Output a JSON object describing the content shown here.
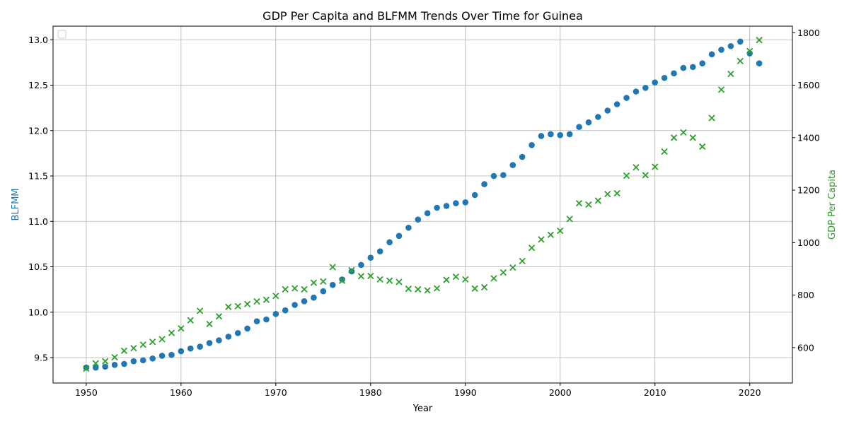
{
  "chart_data": {
    "type": "scatter",
    "title": "GDP Per Capita and BLFMM Trends Over Time for Guinea",
    "xlabel": "Year",
    "ylabel_left": "BLFMM",
    "ylabel_right": "GDP Per Capita",
    "xlim": [
      1946.5,
      2024.5
    ],
    "ylim_left": [
      9.22,
      13.15
    ],
    "ylim_right": [
      465,
      1825
    ],
    "x_ticks": [
      1950,
      1960,
      1970,
      1980,
      1990,
      2000,
      2010,
      2020
    ],
    "y_left_ticks": [
      9.5,
      10.0,
      10.5,
      11.0,
      11.5,
      12.0,
      12.5,
      13.0
    ],
    "y_right_ticks": [
      600,
      800,
      1000,
      1200,
      1400,
      1600,
      1800
    ],
    "grid": true,
    "legend": "top-left (empty)",
    "colors": {
      "blfmm": "#1f77b4",
      "gdp": "#2ca02c",
      "grid": "#b0b0b0"
    },
    "x": [
      1950,
      1951,
      1952,
      1953,
      1954,
      1955,
      1956,
      1957,
      1958,
      1959,
      1960,
      1961,
      1962,
      1963,
      1964,
      1965,
      1966,
      1967,
      1968,
      1969,
      1970,
      1971,
      1972,
      1973,
      1974,
      1975,
      1976,
      1977,
      1978,
      1979,
      1980,
      1981,
      1982,
      1983,
      1984,
      1985,
      1986,
      1987,
      1988,
      1989,
      1990,
      1991,
      1992,
      1993,
      1994,
      1995,
      1996,
      1997,
      1998,
      1999,
      2000,
      2001,
      2002,
      2003,
      2004,
      2005,
      2006,
      2007,
      2008,
      2009,
      2010,
      2011,
      2012,
      2013,
      2014,
      2015,
      2016,
      2017,
      2018,
      2019,
      2020,
      2021
    ],
    "series": [
      {
        "name": "BLFMM",
        "axis": "left",
        "marker": "circle",
        "values": [
          9.39,
          9.39,
          9.4,
          9.42,
          9.43,
          9.46,
          9.47,
          9.49,
          9.52,
          9.53,
          9.57,
          9.6,
          9.62,
          9.66,
          9.69,
          9.73,
          9.77,
          9.82,
          9.9,
          9.92,
          9.98,
          10.02,
          10.08,
          10.12,
          10.16,
          10.23,
          10.3,
          10.36,
          10.45,
          10.52,
          10.6,
          10.67,
          10.77,
          10.84,
          10.93,
          11.02,
          11.09,
          11.15,
          11.17,
          11.2,
          11.21,
          11.29,
          11.41,
          11.5,
          11.51,
          11.62,
          11.71,
          11.84,
          11.94,
          11.96,
          11.95,
          11.96,
          12.04,
          12.09,
          12.15,
          12.22,
          12.29,
          12.36,
          12.43,
          12.47,
          12.53,
          12.58,
          12.63,
          12.69,
          12.7,
          12.74,
          12.84,
          12.89,
          12.93,
          12.98,
          12.85,
          12.74
        ]
      },
      {
        "name": "GDP Per Capita",
        "axis": "right",
        "marker": "x",
        "values": [
          520,
          540,
          548,
          563,
          588,
          598,
          611,
          622,
          632,
          656,
          673,
          704,
          740,
          690,
          719,
          755,
          758,
          766,
          776,
          782,
          797,
          822,
          826,
          822,
          847,
          852,
          907,
          855,
          895,
          872,
          873,
          860,
          855,
          850,
          824,
          822,
          818,
          826,
          858,
          870,
          860,
          825,
          830,
          864,
          886,
          905,
          930,
          980,
          1012,
          1030,
          1045,
          1090,
          1150,
          1145,
          1160,
          1185,
          1188,
          1255,
          1287,
          1257,
          1289,
          1347,
          1400,
          1420,
          1400,
          1366,
          1475,
          1583,
          1643,
          1692,
          1730,
          1772
        ]
      }
    ]
  }
}
